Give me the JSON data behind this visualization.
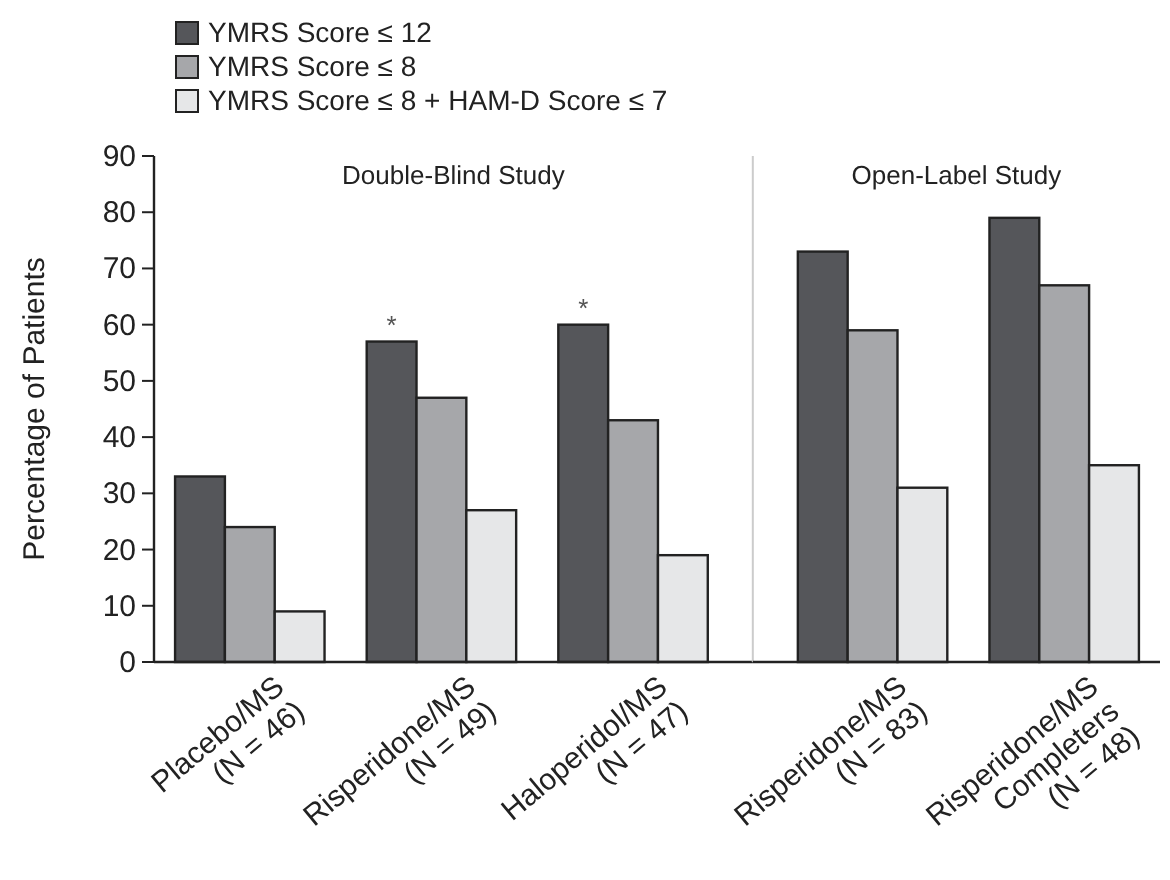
{
  "chart_data": [
    {
      "type": "bar",
      "title": "Double-Blind Study",
      "ylabel": "Percentage of Patients",
      "categories": [
        "Placebo/MS\n(N = 46)",
        "Risperidone/MS\n(N = 49)",
        "Haloperidol/MS\n(N = 47)"
      ],
      "series": [
        {
          "name": "YMRS Score ≤ 12",
          "color": "#55565a",
          "values": [
            33,
            57,
            60
          ]
        },
        {
          "name": "YMRS Score ≤ 8",
          "color": "#a6a7aa",
          "values": [
            24,
            47,
            43
          ]
        },
        {
          "name": "YMRS Score ≤ 8 + HAM-D Score ≤ 7",
          "color": "#e6e7e8",
          "values": [
            9,
            27,
            19
          ]
        }
      ],
      "ylim": [
        0,
        90
      ],
      "yticks": [
        0,
        10,
        20,
        30,
        40,
        50,
        60,
        70,
        80,
        90
      ],
      "legend": "top left",
      "annotations": [
        {
          "text": "*",
          "x": "Risperidone/MS\n(N = 49)",
          "y": 57
        },
        {
          "text": "*",
          "x": "Haloperidol/MS\n(N = 47)",
          "y": 60
        }
      ]
    },
    {
      "type": "bar",
      "title": "Open-Label Study",
      "categories": [
        "Risperidone/MS\n(N = 83)",
        "Risperidone/MS\nCompleters\n(N = 48)"
      ],
      "series": [
        {
          "color": "#55565a",
          "values": [
            73,
            79
          ]
        },
        {
          "color": "#a6a7aa",
          "values": [
            59,
            67
          ]
        },
        {
          "color": "#e6e7e8",
          "values": [
            31,
            35
          ]
        }
      ],
      "ylim": [
        0,
        90
      ],
      "yticks": [
        0,
        10,
        20,
        30,
        40,
        50,
        60,
        70,
        80,
        90
      ],
      "tick_labels": "x"
    }
  ]
}
